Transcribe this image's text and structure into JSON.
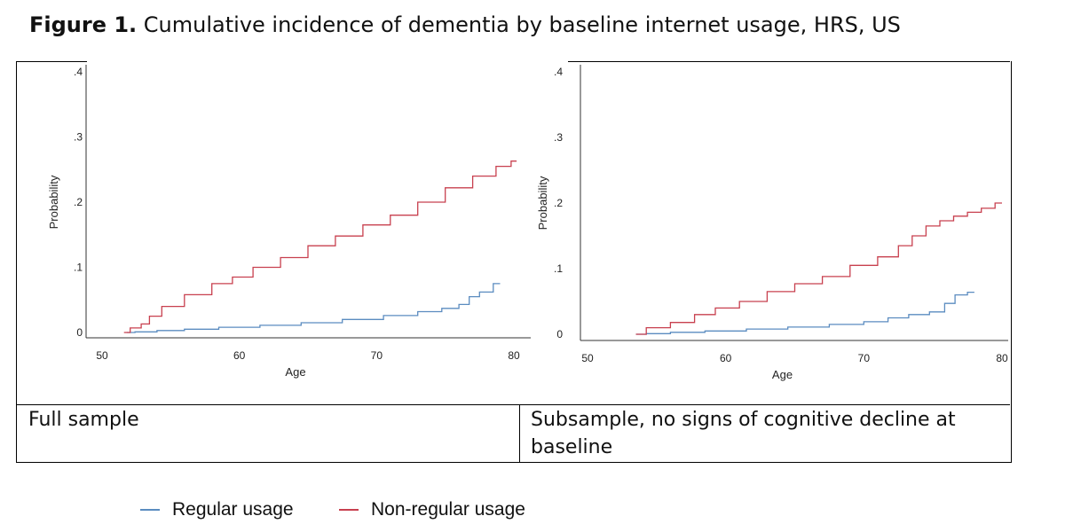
{
  "figure": {
    "title_bold": "Figure 1.",
    "title_rest": " Cumulative incidence of dementia by baseline internet usage, HRS, US"
  },
  "colors": {
    "regular": "#5b8cc0",
    "nonregular": "#c8404f"
  },
  "legend": [
    {
      "label": "Regular usage",
      "color": "#5b8cc0"
    },
    {
      "label": "Non-regular usage",
      "color": "#c8404f"
    }
  ],
  "captions": {
    "left": "Full sample",
    "right": "Subsample, no signs of cognitive decline at baseline"
  },
  "chart_data": [
    {
      "type": "line",
      "panel": "Full sample",
      "xlabel": "Age",
      "ylabel": "Probability",
      "xlim": [
        50,
        80
      ],
      "ylim": [
        0,
        0.4
      ],
      "xticks": [
        "50",
        "60",
        "70",
        "80"
      ],
      "yticks": [
        ".4",
        ".3",
        ".2",
        ".1",
        "0"
      ],
      "series": [
        {
          "name": "Regular usage",
          "x": [
            51.8,
            53,
            55,
            57,
            60,
            63,
            66,
            69,
            72,
            74,
            75.5,
            76.5,
            77,
            78,
            79
          ],
          "y": [
            0.0,
            0.001,
            0.003,
            0.005,
            0.008,
            0.011,
            0.015,
            0.02,
            0.026,
            0.032,
            0.037,
            0.043,
            0.055,
            0.062,
            0.075
          ]
        },
        {
          "name": "Non-regular usage",
          "x": [
            51.6,
            52.5,
            53.2,
            53.7,
            55,
            57,
            59,
            60,
            62,
            64,
            66,
            68,
            70,
            72,
            74,
            76,
            78,
            79.4,
            80.2
          ],
          "y": [
            0.0,
            0.007,
            0.013,
            0.025,
            0.04,
            0.058,
            0.075,
            0.085,
            0.1,
            0.115,
            0.133,
            0.148,
            0.165,
            0.18,
            0.2,
            0.222,
            0.24,
            0.255,
            0.263
          ]
        }
      ]
    },
    {
      "type": "line",
      "panel": "Subsample, no signs of cognitive decline at baseline",
      "xlabel": "Age",
      "ylabel": "Probability",
      "xlim": [
        50,
        80
      ],
      "ylim": [
        0,
        0.4
      ],
      "xticks": [
        "50",
        "60",
        "70",
        "80"
      ],
      "yticks": [
        ".4",
        ".3",
        ".2",
        ".1",
        "0"
      ],
      "series": [
        {
          "name": "Regular usage",
          "x": [
            53.5,
            55,
            57,
            60,
            63,
            66,
            69,
            71,
            72.5,
            74,
            75.5,
            76.2,
            77,
            78
          ],
          "y": [
            0.0,
            0.001,
            0.003,
            0.005,
            0.008,
            0.011,
            0.015,
            0.019,
            0.025,
            0.03,
            0.034,
            0.047,
            0.06,
            0.064
          ]
        },
        {
          "name": "Non-regular usage",
          "x": [
            53.5,
            55,
            57,
            58.5,
            60,
            62,
            64,
            66,
            68,
            70,
            72,
            73,
            74,
            75,
            76,
            77,
            78,
            79,
            80
          ],
          "y": [
            0.0,
            0.01,
            0.018,
            0.03,
            0.04,
            0.05,
            0.065,
            0.077,
            0.088,
            0.105,
            0.118,
            0.135,
            0.15,
            0.165,
            0.173,
            0.18,
            0.186,
            0.192,
            0.2
          ]
        }
      ]
    }
  ]
}
